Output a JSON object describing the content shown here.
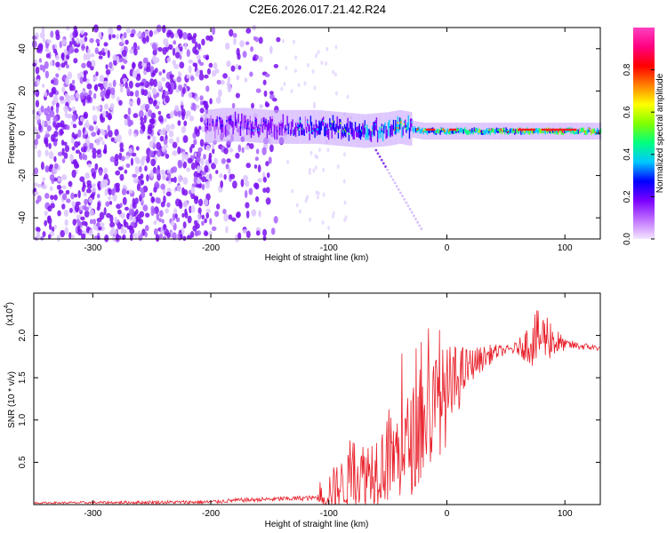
{
  "title": "C2E6.2026.017.21.42.R24",
  "chart_data": [
    {
      "type": "heatmap",
      "xlabel": "Height of straight line (km)",
      "ylabel": "Frequency (Hz)",
      "xlim": [
        -350,
        130
      ],
      "ylim": [
        -50,
        50
      ],
      "xticks": [
        -300,
        -200,
        -100,
        0,
        100
      ],
      "yticks": [
        -40,
        -20,
        0,
        20,
        40
      ],
      "colorbar": {
        "label": "Normalized spectral amplitude",
        "range": [
          0.0,
          1.0
        ],
        "ticks": [
          0.0,
          0.2,
          0.4,
          0.6,
          0.8
        ],
        "colors": [
          "#f4e6ff",
          "#c070ff",
          "#7b00ff",
          "#0000ff",
          "#00c8ff",
          "#00ff80",
          "#80ff00",
          "#ffff00",
          "#ff8000",
          "#ff0000",
          "#ff0080",
          "#ff40c0"
        ]
      },
      "ridge": {
        "x": [
          -205,
          -190,
          -170,
          -150,
          -130,
          -110,
          -90,
          -70,
          -50,
          -40,
          -30,
          -20,
          -10,
          0,
          20,
          40,
          60,
          80,
          100,
          130
        ],
        "y": [
          3,
          4,
          4,
          3,
          3,
          3,
          2,
          1,
          2,
          3,
          2,
          1,
          1,
          1,
          1,
          1,
          1,
          1,
          1,
          1
        ],
        "amplitude": [
          0.2,
          0.25,
          0.25,
          0.3,
          0.35,
          0.4,
          0.45,
          0.5,
          0.55,
          0.6,
          0.6,
          0.65,
          0.7,
          0.72,
          0.75,
          0.78,
          0.8,
          0.85,
          0.85,
          0.85
        ]
      },
      "noise_region_x": [
        -350,
        -140
      ]
    },
    {
      "type": "line",
      "xlabel": "Height of straight line (km)",
      "ylabel": "SNR (10 * v/v)",
      "yscale_label": "(x10",
      "yscale_exp": "4",
      "xlim": [
        -350,
        130
      ],
      "ylim": [
        0,
        2.5
      ],
      "xticks": [
        -300,
        -200,
        -100,
        0,
        100
      ],
      "yticks": [
        0.5,
        1.0,
        1.5,
        2.0
      ],
      "color": "#e8202a",
      "envelope": {
        "x": [
          -350,
          -200,
          -180,
          -110,
          -100,
          -80,
          -60,
          -40,
          -30,
          -20,
          -10,
          0,
          10,
          20,
          40,
          60,
          75,
          85,
          95,
          130
        ],
        "y": [
          0.02,
          0.03,
          0.05,
          0.08,
          0.15,
          0.3,
          0.45,
          0.6,
          0.75,
          0.95,
          1.15,
          1.3,
          1.5,
          1.65,
          1.8,
          1.85,
          1.95,
          2.0,
          1.9,
          1.85
        ]
      },
      "spread": {
        "x": [
          -350,
          -110,
          -100,
          -60,
          -20,
          0,
          20,
          50,
          60,
          75,
          90,
          100,
          130
        ],
        "y": [
          0.01,
          0.03,
          0.25,
          0.45,
          0.7,
          0.6,
          0.2,
          0.05,
          0.08,
          0.35,
          0.25,
          0.06,
          0.03
        ]
      }
    }
  ]
}
